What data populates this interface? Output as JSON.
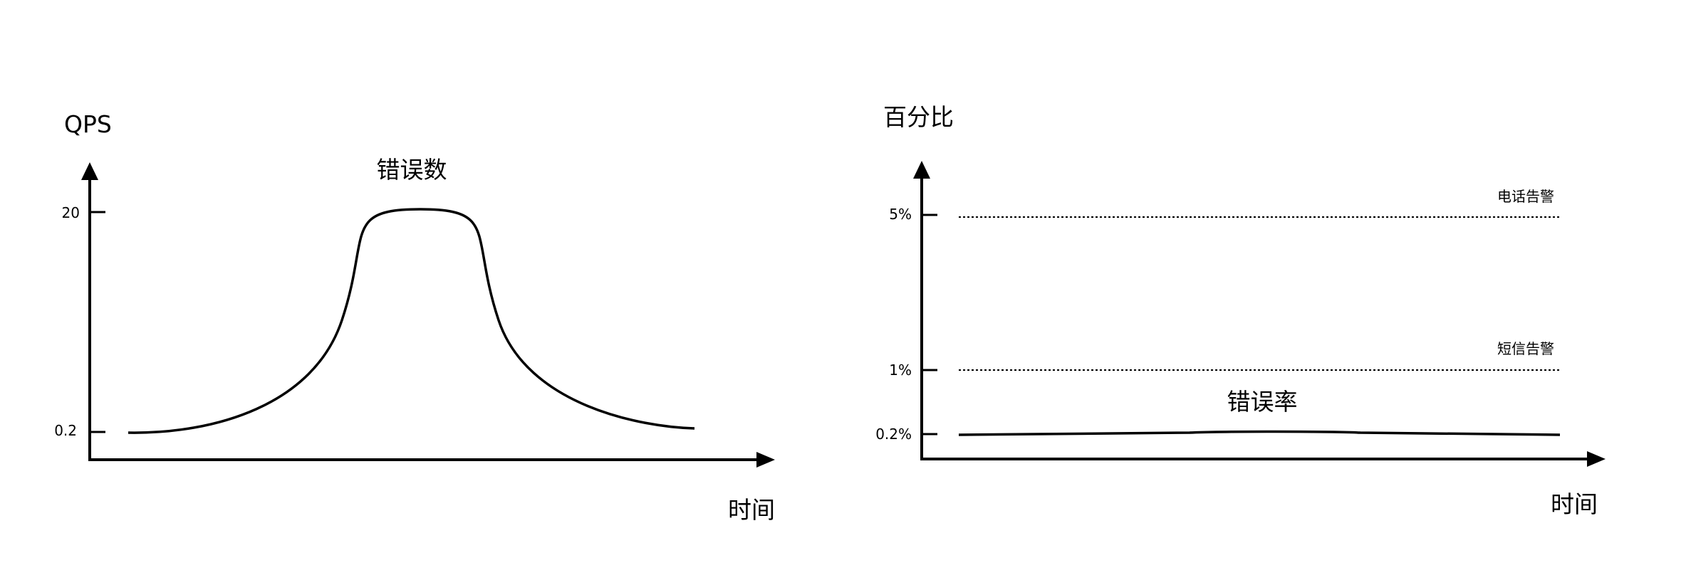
{
  "left_chart": {
    "y_axis_label": "QPS",
    "x_axis_label": "时间",
    "curve_label": "错误数",
    "ticks": [
      {
        "label": "20"
      },
      {
        "label": "0.2"
      }
    ]
  },
  "right_chart": {
    "y_axis_label": "百分比",
    "x_axis_label": "时间",
    "curve_label": "错误率",
    "ticks": [
      {
        "label": "5%"
      },
      {
        "label": "1%"
      },
      {
        "label": "0.2%"
      }
    ],
    "thresholds": [
      {
        "label": "电话告警",
        "value": "5%"
      },
      {
        "label": "短信告警",
        "value": "1%"
      }
    ]
  },
  "colors": {
    "stroke": "#000000",
    "background": "#ffffff"
  }
}
